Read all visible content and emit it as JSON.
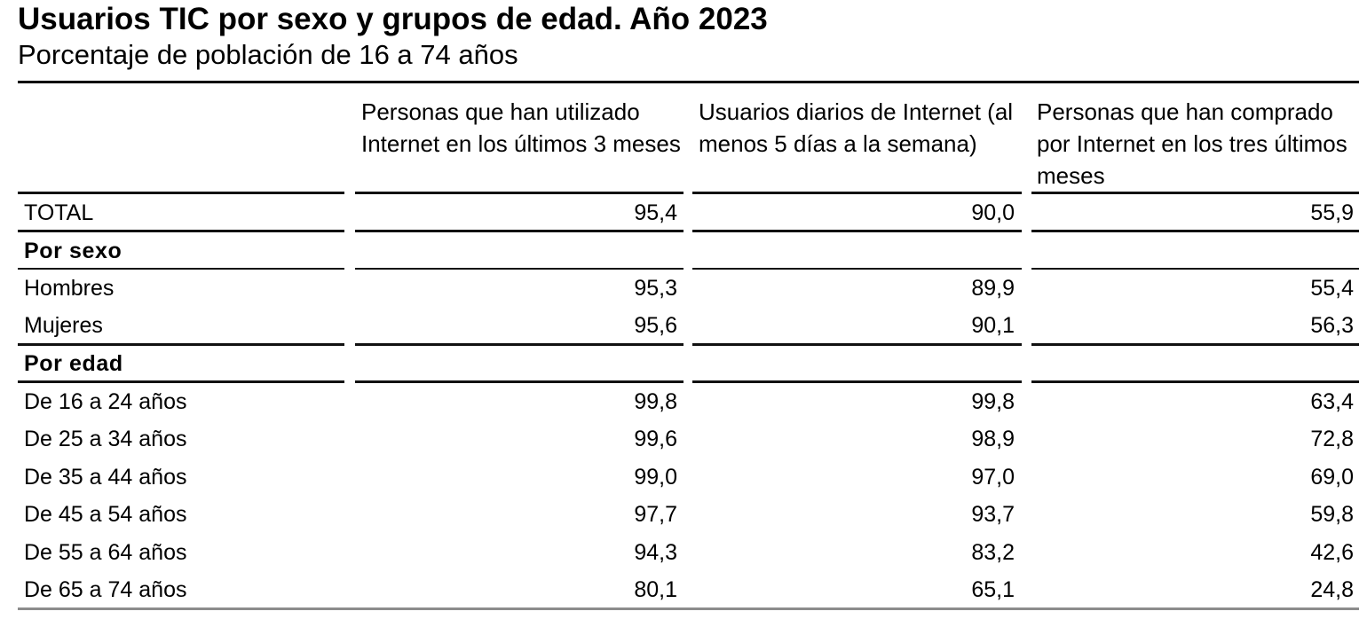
{
  "title": "Usuarios TIC por sexo y grupos de edad. Año 2023",
  "subtitle": "Porcentaje de población de 16 a 74 años",
  "columns": [
    "Personas que han utilizado Internet en los últimos 3 meses",
    "Usuarios diarios de Internet (al menos 5 días a la semana)",
    "Personas que han comprado por Internet en los tres últimos meses"
  ],
  "rows": [
    {
      "label": "TOTAL",
      "values": [
        "95,4",
        "90,0",
        "55,9"
      ]
    },
    {
      "label": "Por sexo",
      "values": [
        "",
        "",
        ""
      ]
    },
    {
      "label": "Hombres",
      "values": [
        "95,3",
        "89,9",
        "55,4"
      ]
    },
    {
      "label": "Mujeres",
      "values": [
        "95,6",
        "90,1",
        "56,3"
      ]
    },
    {
      "label": "Por edad",
      "values": [
        "",
        "",
        ""
      ]
    },
    {
      "label": "De 16 a 24 años",
      "values": [
        "99,8",
        "99,8",
        "63,4"
      ]
    },
    {
      "label": "De 25 a 34 años",
      "values": [
        "99,6",
        "98,9",
        "72,8"
      ]
    },
    {
      "label": "De 35 a 44 años",
      "values": [
        "99,0",
        "97,0",
        "69,0"
      ]
    },
    {
      "label": "De 45 a 54 años",
      "values": [
        "97,7",
        "93,7",
        "59,8"
      ]
    },
    {
      "label": "De 55 a 64 años",
      "values": [
        "94,3",
        "83,2",
        "42,6"
      ]
    },
    {
      "label": "De 65 a 74 años",
      "values": [
        "80,1",
        "65,1",
        "24,8"
      ]
    }
  ]
}
